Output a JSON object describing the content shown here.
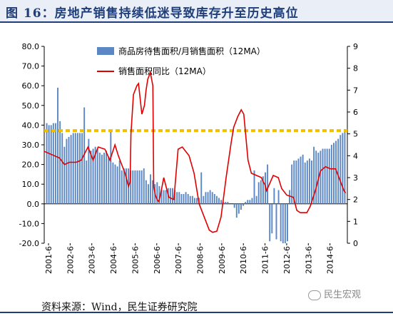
{
  "figure": {
    "title": "图 16：房地产销售持续低迷导致库存升至历史高位",
    "source": "资料来源：Wind，民生证券研究院",
    "watermark": "民生宏观"
  },
  "colors": {
    "bars": "#5b87c5",
    "line": "#e00000",
    "threshold": "#f0c000",
    "title_band": "#e9eef7",
    "title_text": "#1f3e7a"
  },
  "chart_data": {
    "type": "bar",
    "x_tick_labels": [
      "2001-6",
      "2002-6",
      "2003-6",
      "2004-6",
      "2005-6",
      "2006-6",
      "2007-6",
      "2008-6",
      "2009-6",
      "2010-6",
      "2011-6",
      "2012-6",
      "2013-6",
      "2014-6"
    ],
    "y_left": {
      "lim": [
        -20,
        80
      ],
      "ticks": [
        "-20.0",
        "-10.0",
        "0.0",
        "10.0",
        "20.0",
        "30.0",
        "40.0",
        "50.0",
        "60.0",
        "70.0",
        "80.0"
      ]
    },
    "y_right": {
      "lim": [
        0,
        9
      ],
      "ticks": [
        "0",
        "1",
        "2",
        "3",
        "4",
        "5",
        "6",
        "7",
        "8",
        "9"
      ]
    },
    "threshold_right": 5.15,
    "legend": {
      "bar_label": "商品房待售面积/月销售面积（12MA）",
      "line_label": "销售面积同比（12MA）"
    },
    "series": [
      {
        "name": "商品房待售面积/月销售面积（12MA）",
        "type": "bar",
        "axis": "left",
        "values": [
          41,
          40,
          40,
          41,
          41,
          59,
          42,
          36,
          29,
          33,
          34,
          35,
          36,
          36,
          36,
          36,
          36,
          49,
          22,
          33,
          27,
          28,
          29,
          28,
          26,
          25,
          26,
          27,
          24,
          37,
          21,
          20,
          19,
          22,
          17,
          18,
          18,
          18,
          17,
          17,
          17,
          17,
          17,
          17,
          18,
          12,
          10,
          15,
          12,
          10,
          11,
          9,
          7,
          7,
          7,
          8,
          8,
          8,
          7,
          6,
          6,
          5,
          5,
          6,
          5,
          4,
          4,
          3,
          3,
          3,
          16,
          4,
          6,
          6,
          7,
          6,
          5,
          4,
          3,
          2,
          1,
          1,
          1,
          0,
          0,
          -2,
          -7,
          -5,
          -3,
          -1,
          1,
          2,
          2,
          3,
          17,
          4,
          11,
          12,
          14,
          16,
          20,
          -19,
          -15,
          8,
          -18,
          7,
          -19,
          -20,
          -20,
          -19,
          7,
          20,
          22,
          22,
          23,
          24,
          25,
          21,
          22,
          23,
          22,
          29,
          27,
          26,
          27,
          28,
          28,
          28,
          28,
          30,
          31,
          32,
          33,
          35,
          36,
          38
        ]
      },
      {
        "name": "销售面积同比（12MA）",
        "type": "line",
        "axis": "right",
        "points": [
          [
            0.0,
            4.2
          ],
          [
            0.6,
            4.0
          ],
          [
            0.9,
            3.9
          ],
          [
            1.2,
            3.6
          ],
          [
            1.5,
            3.7
          ],
          [
            1.9,
            3.7
          ],
          [
            2.2,
            3.8
          ],
          [
            2.6,
            4.4
          ],
          [
            2.9,
            3.8
          ],
          [
            3.2,
            4.4
          ],
          [
            3.6,
            4.3
          ],
          [
            3.9,
            3.8
          ],
          [
            4.2,
            4.5
          ],
          [
            4.4,
            4.0
          ],
          [
            4.6,
            3.6
          ],
          [
            4.8,
            3.2
          ],
          [
            5.0,
            2.6
          ],
          [
            5.1,
            2.8
          ],
          [
            5.15,
            5.0
          ],
          [
            5.3,
            6.8
          ],
          [
            5.5,
            7.2
          ],
          [
            5.6,
            7.3
          ],
          [
            5.8,
            5.9
          ],
          [
            5.95,
            6.3
          ],
          [
            6.05,
            7.0
          ],
          [
            6.15,
            7.5
          ],
          [
            6.3,
            7.8
          ],
          [
            6.45,
            7.2
          ],
          [
            6.5,
            2.6
          ],
          [
            6.6,
            2.2
          ],
          [
            6.7,
            2.0
          ],
          [
            6.8,
            1.9
          ],
          [
            6.9,
            2.2
          ],
          [
            7.1,
            3.0
          ],
          [
            7.4,
            2.1
          ],
          [
            7.7,
            2.0
          ],
          [
            7.95,
            4.3
          ],
          [
            8.2,
            4.4
          ],
          [
            8.6,
            4.0
          ],
          [
            8.9,
            3.2
          ],
          [
            9.2,
            1.8
          ],
          [
            9.5,
            1.2
          ],
          [
            9.8,
            0.6
          ],
          [
            10.0,
            0.5
          ],
          [
            10.25,
            0.55
          ],
          [
            10.5,
            1.2
          ],
          [
            10.8,
            3.0
          ],
          [
            11.1,
            4.6
          ],
          [
            11.25,
            5.3
          ],
          [
            11.5,
            5.8
          ],
          [
            11.7,
            6.1
          ],
          [
            11.85,
            5.9
          ],
          [
            12.1,
            3.8
          ],
          [
            12.3,
            3.2
          ],
          [
            12.6,
            3.1
          ],
          [
            12.9,
            3.0
          ],
          [
            13.0,
            2.8
          ],
          [
            13.1,
            2.7
          ],
          [
            13.2,
            2.4
          ],
          [
            13.6,
            3.1
          ],
          [
            13.9,
            3.0
          ],
          [
            14.1,
            2.5
          ],
          [
            14.4,
            2.2
          ],
          [
            14.8,
            2.1
          ],
          [
            15.0,
            1.5
          ],
          [
            15.2,
            1.4
          ],
          [
            15.4,
            1.4
          ],
          [
            15.6,
            1.4
          ],
          [
            15.8,
            1.7
          ],
          [
            16.1,
            2.4
          ],
          [
            16.4,
            3.3
          ],
          [
            16.7,
            3.5
          ],
          [
            17.0,
            3.4
          ],
          [
            17.3,
            3.4
          ],
          [
            17.5,
            3.0
          ],
          [
            17.8,
            2.4
          ],
          [
            17.9,
            2.3
          ]
        ]
      }
    ]
  }
}
